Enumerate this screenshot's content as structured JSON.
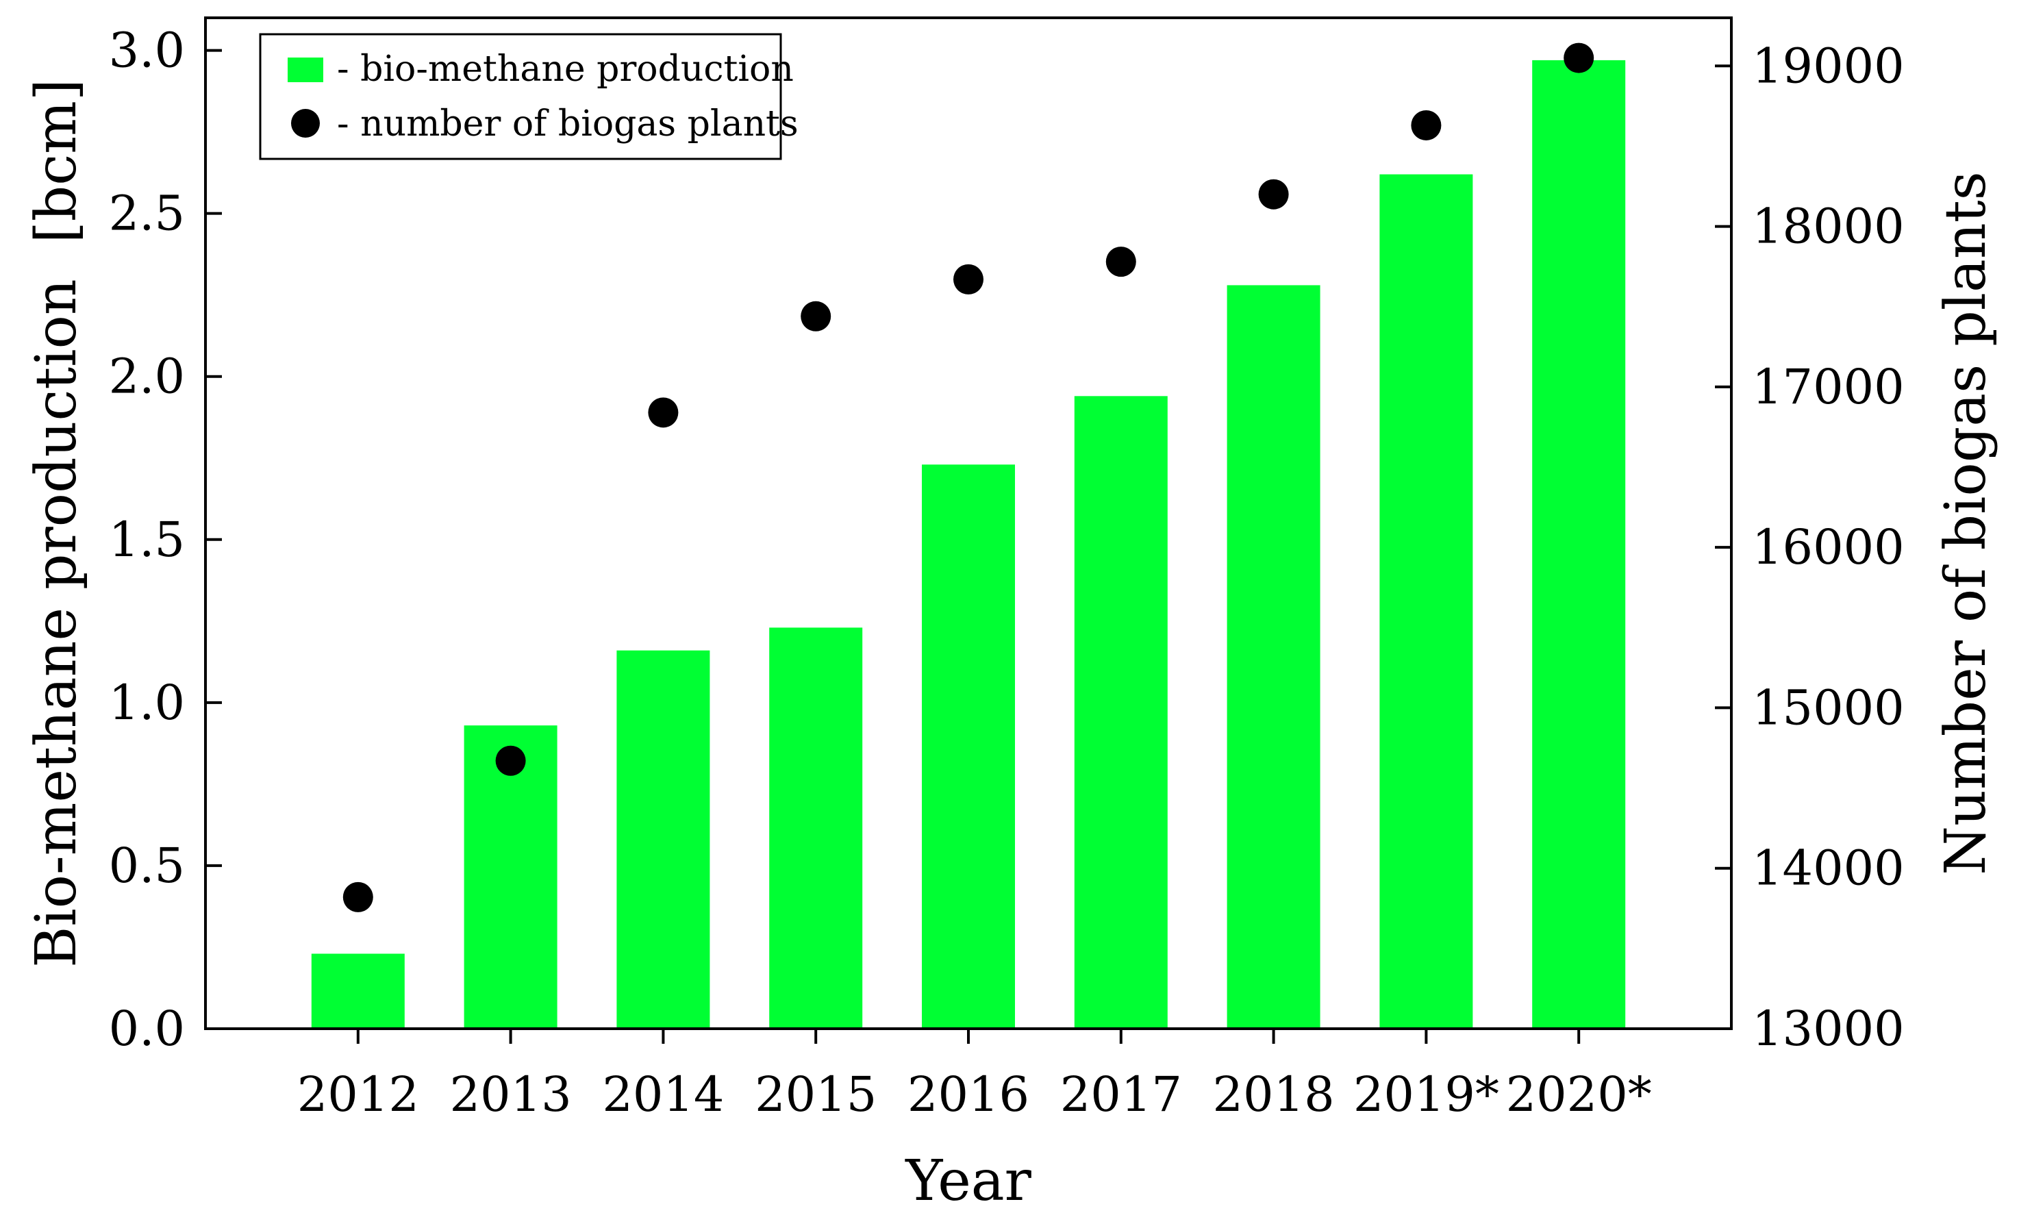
{
  "chart_data": {
    "type": "bar+scatter",
    "xlabel": "Year",
    "categories": [
      "2012",
      "2013",
      "2014",
      "2015",
      "2016",
      "2017",
      "2018",
      "2019*",
      "2020*"
    ],
    "series": [
      {
        "name": "bio-methane production",
        "kind": "bar",
        "axis": "left",
        "color": "#00ff33",
        "values": [
          0.23,
          0.93,
          1.16,
          1.23,
          1.73,
          1.94,
          2.28,
          2.62,
          2.97
        ]
      },
      {
        "name": "number of biogas plants",
        "kind": "scatter",
        "axis": "right",
        "color": "#000000",
        "values": [
          13820,
          14670,
          16840,
          17440,
          17670,
          17780,
          18200,
          18630,
          19050
        ]
      }
    ],
    "y_left": {
      "label": "Bio-methane production  [bcm]",
      "ylim": [
        0.0,
        3.1
      ],
      "ticks": [
        "0.0",
        "0.5",
        "1.0",
        "1.5",
        "2.0",
        "2.5",
        "3.0"
      ]
    },
    "y_right": {
      "label": "Number of biogas plants",
      "ylim": [
        13000,
        19300
      ],
      "ticks": [
        "13000",
        "14000",
        "15000",
        "16000",
        "17000",
        "18000",
        "19000"
      ]
    },
    "legend": {
      "position": "top-left",
      "entries": [
        "- bio-methane production",
        "- number of biogas plants"
      ]
    }
  }
}
